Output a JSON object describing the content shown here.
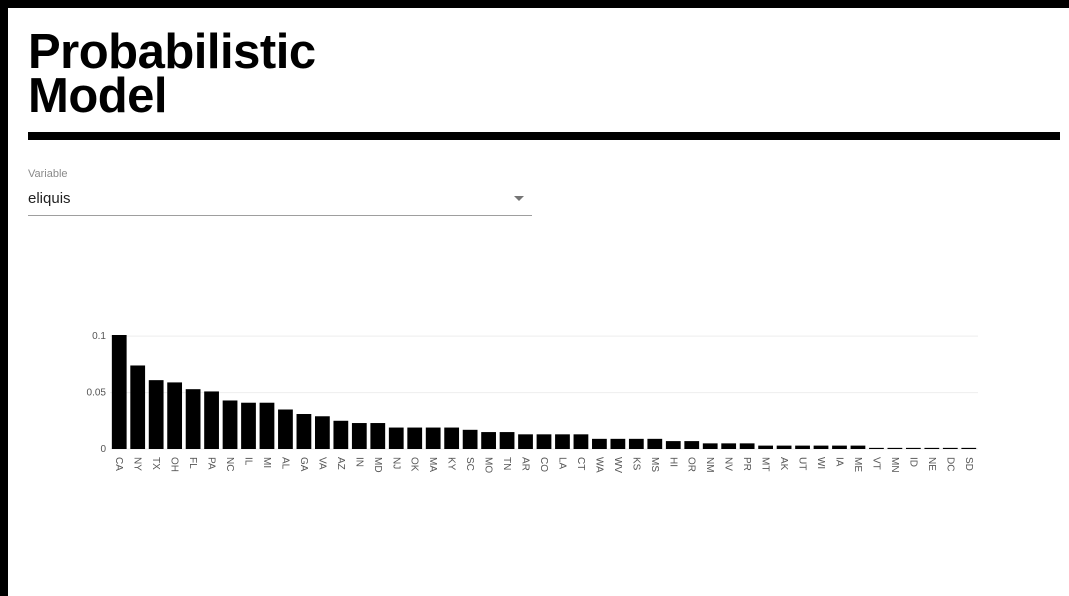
{
  "page": {
    "title_line1": "Probabilistic",
    "title_line2": "Model"
  },
  "variable_select": {
    "label": "Variable",
    "value": "eliquis"
  },
  "colors": {
    "bar": "#000000",
    "grid": "#eeeeee",
    "tick_text": "#555555"
  },
  "chart_data": {
    "type": "bar",
    "categories": [
      "CA",
      "NY",
      "TX",
      "OH",
      "FL",
      "PA",
      "NC",
      "IL",
      "MI",
      "AL",
      "GA",
      "VA",
      "AZ",
      "IN",
      "MD",
      "NJ",
      "OK",
      "MA",
      "KY",
      "SC",
      "MO",
      "TN",
      "AR",
      "CO",
      "LA",
      "CT",
      "WA",
      "WV",
      "KS",
      "MS",
      "HI",
      "OR",
      "NM",
      "NV",
      "PR",
      "MT",
      "AK",
      "UT",
      "WI",
      "IA",
      "ME",
      "VT",
      "MN",
      "ID",
      "NE",
      "DC",
      "SD"
    ],
    "values": [
      0.101,
      0.074,
      0.061,
      0.059,
      0.053,
      0.051,
      0.043,
      0.041,
      0.041,
      0.035,
      0.031,
      0.029,
      0.025,
      0.023,
      0.023,
      0.019,
      0.019,
      0.019,
      0.019,
      0.017,
      0.015,
      0.015,
      0.013,
      0.013,
      0.013,
      0.013,
      0.009,
      0.009,
      0.009,
      0.009,
      0.007,
      0.007,
      0.005,
      0.005,
      0.005,
      0.003,
      0.003,
      0.003,
      0.003,
      0.003,
      0.003,
      0.001,
      0.001,
      0.001,
      0.001,
      0.001,
      0.001
    ],
    "yticks": [
      0,
      0.05,
      0.1
    ],
    "ylim": [
      0,
      0.101
    ],
    "grid": true,
    "title": "",
    "xlabel": "",
    "ylabel": ""
  }
}
